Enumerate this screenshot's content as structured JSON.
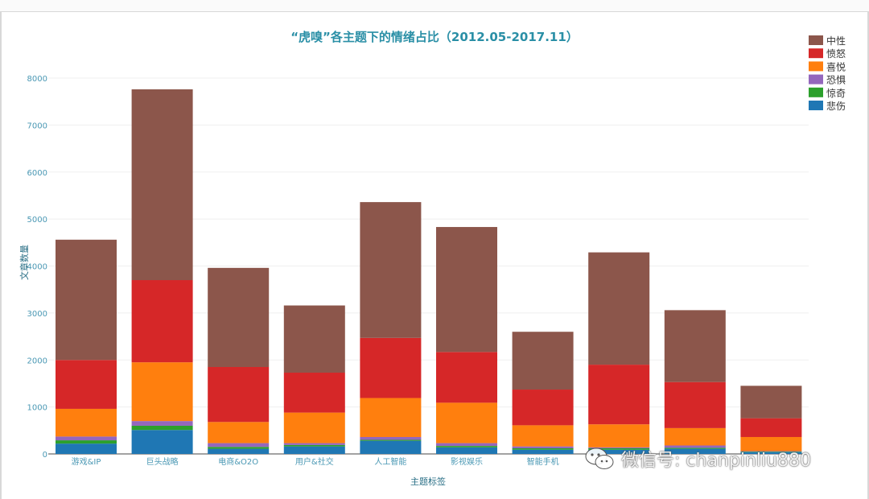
{
  "chart_data": {
    "type": "bar",
    "stacked": true,
    "title": "“虎嗅”各主题下的情绪占比（2012.05-2017.11）",
    "xlabel": "主题标签",
    "ylabel": "文章数量",
    "ylim": [
      0,
      8000
    ],
    "yticks": [
      0,
      1000,
      2000,
      3000,
      4000,
      5000,
      6000,
      7000,
      8000
    ],
    "grid": true,
    "legend_position": "top-right",
    "categories": [
      "游戏&IP",
      "巨头战略",
      "电商&O2O",
      "用户&社交",
      "人工智能",
      "影视娱乐",
      "智能手机",
      "",
      "",
      ""
    ],
    "series": [
      {
        "name": "悲伤",
        "color": "#1f77b4",
        "values": [
          220,
          510,
          110,
          160,
          280,
          140,
          90,
          90,
          110,
          40
        ]
      },
      {
        "name": "惊奇",
        "color": "#2ca02c",
        "values": [
          70,
          90,
          40,
          30,
          20,
          30,
          30,
          30,
          20,
          10
        ]
      },
      {
        "name": "恐惧",
        "color": "#9467bd",
        "values": [
          80,
          100,
          80,
          40,
          60,
          60,
          40,
          20,
          50,
          10
        ]
      },
      {
        "name": "喜悦",
        "color": "#ff7f0e",
        "values": [
          590,
          1250,
          450,
          650,
          830,
          860,
          450,
          490,
          370,
          300
        ]
      },
      {
        "name": "愤怒",
        "color": "#d62728",
        "values": [
          1040,
          1750,
          1170,
          850,
          1280,
          1080,
          760,
          1270,
          980,
          400
        ]
      },
      {
        "name": "中性",
        "color": "#8c564b",
        "values": [
          2560,
          4060,
          2110,
          1430,
          2890,
          2660,
          1230,
          2390,
          1530,
          690
        ]
      }
    ]
  },
  "legend_order": [
    "中性",
    "愤怒",
    "喜悦",
    "恐惧",
    "惊奇",
    "悲伤"
  ],
  "watermark": {
    "text": "微信号: chanpinliu880",
    "icon": "wechat-icon"
  }
}
